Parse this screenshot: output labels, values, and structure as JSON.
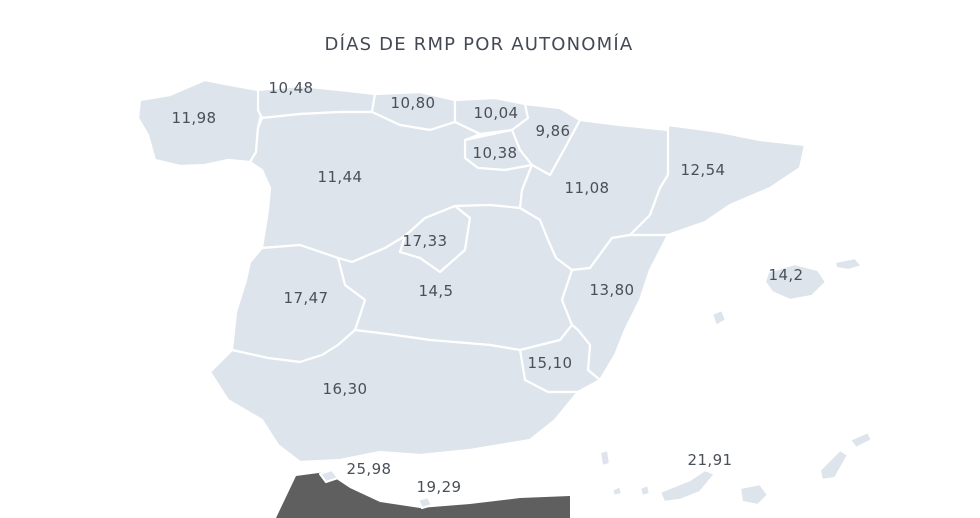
{
  "title": "DÍAS DE RMP POR AUTONOMÍA",
  "colors": {
    "region_fill": "#dde4ec",
    "border": "#ffffff",
    "label": "#4a4f58",
    "title": "#444a55",
    "dark_area": "#5f5f5f"
  },
  "regions": [
    {
      "id": "galicia",
      "value": "11,98"
    },
    {
      "id": "asturias",
      "value": "10,48"
    },
    {
      "id": "cantabria",
      "value": "10,80"
    },
    {
      "id": "pais-vasco",
      "value": "10,04"
    },
    {
      "id": "navarra",
      "value": "9,86"
    },
    {
      "id": "la-rioja",
      "value": "10,38"
    },
    {
      "id": "castilla-y-leon",
      "value": "11,44"
    },
    {
      "id": "aragon",
      "value": "11,08"
    },
    {
      "id": "cataluna",
      "value": "12,54"
    },
    {
      "id": "madrid",
      "value": "17,33"
    },
    {
      "id": "castilla-la-mancha",
      "value": "14,5"
    },
    {
      "id": "extremadura",
      "value": "17,47"
    },
    {
      "id": "comunidad-valenciana",
      "value": "13,80"
    },
    {
      "id": "baleares",
      "value": "14,2"
    },
    {
      "id": "murcia",
      "value": "15,10"
    },
    {
      "id": "andalucia",
      "value": "16,30"
    },
    {
      "id": "ceuta",
      "value": "25,98"
    },
    {
      "id": "melilla",
      "value": "19,29"
    },
    {
      "id": "canarias",
      "value": "21,91"
    }
  ]
}
